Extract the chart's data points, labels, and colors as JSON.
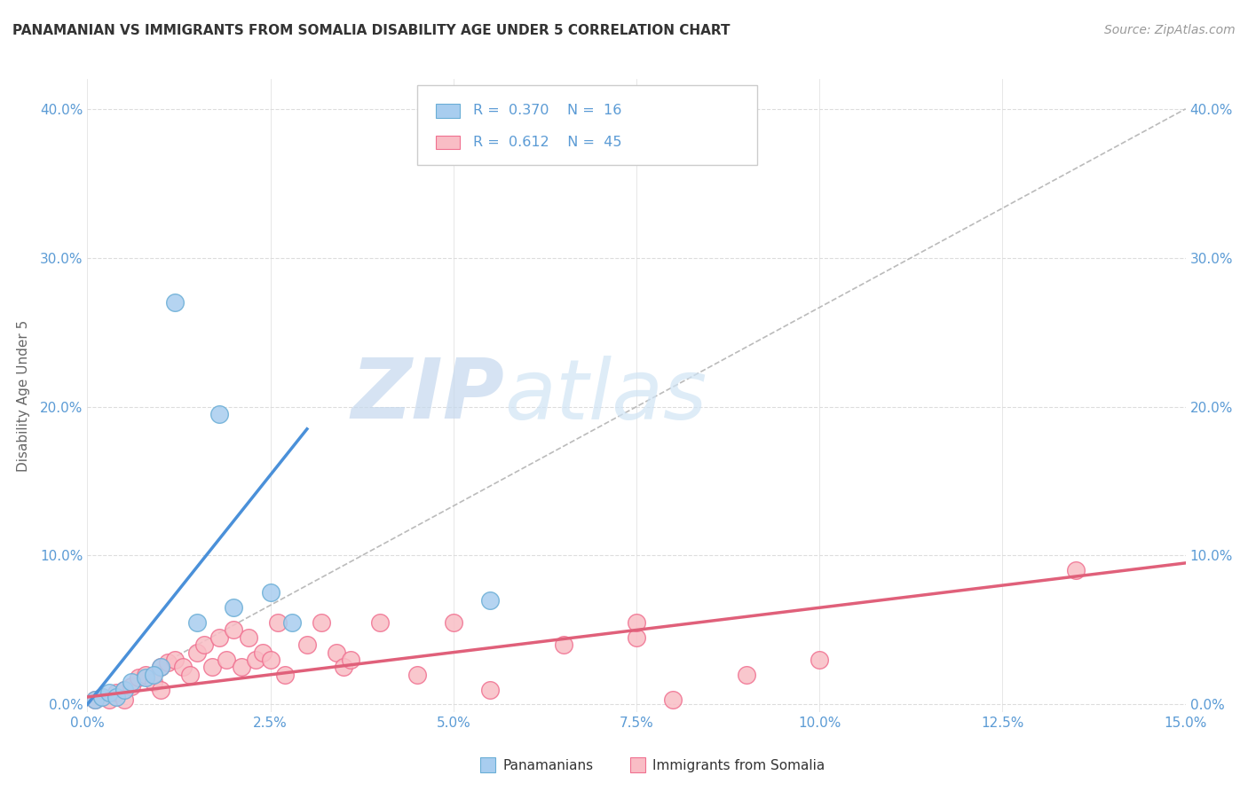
{
  "title": "PANAMANIAN VS IMMIGRANTS FROM SOMALIA DISABILITY AGE UNDER 5 CORRELATION CHART",
  "source": "Source: ZipAtlas.com",
  "xlabel_vals": [
    0.0,
    2.5,
    5.0,
    7.5,
    10.0,
    12.5,
    15.0
  ],
  "ylabel_vals": [
    0.0,
    10.0,
    20.0,
    30.0,
    40.0
  ],
  "xlim": [
    0.0,
    15.0
  ],
  "ylim": [
    -0.5,
    42.0
  ],
  "watermark_zip": "ZIP",
  "watermark_atlas": "atlas",
  "legend1_label": "Panamanians",
  "legend2_label": "Immigrants from Somalia",
  "R1": 0.37,
  "N1": 16,
  "R2": 0.612,
  "N2": 45,
  "color_blue_fill": "#A8CDEF",
  "color_blue_edge": "#6AAED6",
  "color_pink_fill": "#F9BDC5",
  "color_pink_edge": "#F07090",
  "color_blue_line": "#4A90D9",
  "color_pink_line": "#E0607A",
  "color_diag": "#BBBBBB",
  "color_title": "#333333",
  "color_source": "#999999",
  "color_axis_label": "#5B9BD5",
  "color_ylabel": "#666666",
  "color_grid": "#DDDDDD",
  "color_watermark_zip": "#C5D8EE",
  "color_watermark_atlas": "#D0E4F5",
  "panamanian_x": [
    0.1,
    0.2,
    0.3,
    0.4,
    0.5,
    0.6,
    0.8,
    1.0,
    1.2,
    1.5,
    1.8,
    2.0,
    2.5,
    2.8,
    5.5,
    0.9
  ],
  "panamanian_y": [
    0.3,
    0.5,
    0.8,
    0.5,
    1.0,
    1.5,
    1.8,
    2.5,
    27.0,
    5.5,
    19.5,
    6.5,
    7.5,
    5.5,
    7.0,
    2.0
  ],
  "somalia_x": [
    0.1,
    0.2,
    0.3,
    0.4,
    0.5,
    0.5,
    0.6,
    0.7,
    0.8,
    0.9,
    1.0,
    1.0,
    1.1,
    1.2,
    1.3,
    1.4,
    1.5,
    1.6,
    1.7,
    1.8,
    1.9,
    2.0,
    2.1,
    2.2,
    2.3,
    2.4,
    2.5,
    2.6,
    2.7,
    3.0,
    3.2,
    3.4,
    3.5,
    3.6,
    4.0,
    4.5,
    5.0,
    5.5,
    6.5,
    7.5,
    7.5,
    8.0,
    9.0,
    10.0,
    13.5
  ],
  "somalia_y": [
    0.3,
    0.5,
    0.3,
    0.8,
    1.0,
    0.3,
    1.2,
    1.8,
    2.0,
    1.5,
    2.5,
    1.0,
    2.8,
    3.0,
    2.5,
    2.0,
    3.5,
    4.0,
    2.5,
    4.5,
    3.0,
    5.0,
    2.5,
    4.5,
    3.0,
    3.5,
    3.0,
    5.5,
    2.0,
    4.0,
    5.5,
    3.5,
    2.5,
    3.0,
    5.5,
    2.0,
    5.5,
    1.0,
    4.0,
    4.5,
    5.5,
    0.3,
    2.0,
    3.0,
    9.0
  ],
  "blue_line_x": [
    0.0,
    3.0
  ],
  "blue_line_y": [
    0.0,
    18.5
  ],
  "pink_line_x": [
    0.0,
    15.0
  ],
  "pink_line_y": [
    0.5,
    9.5
  ]
}
